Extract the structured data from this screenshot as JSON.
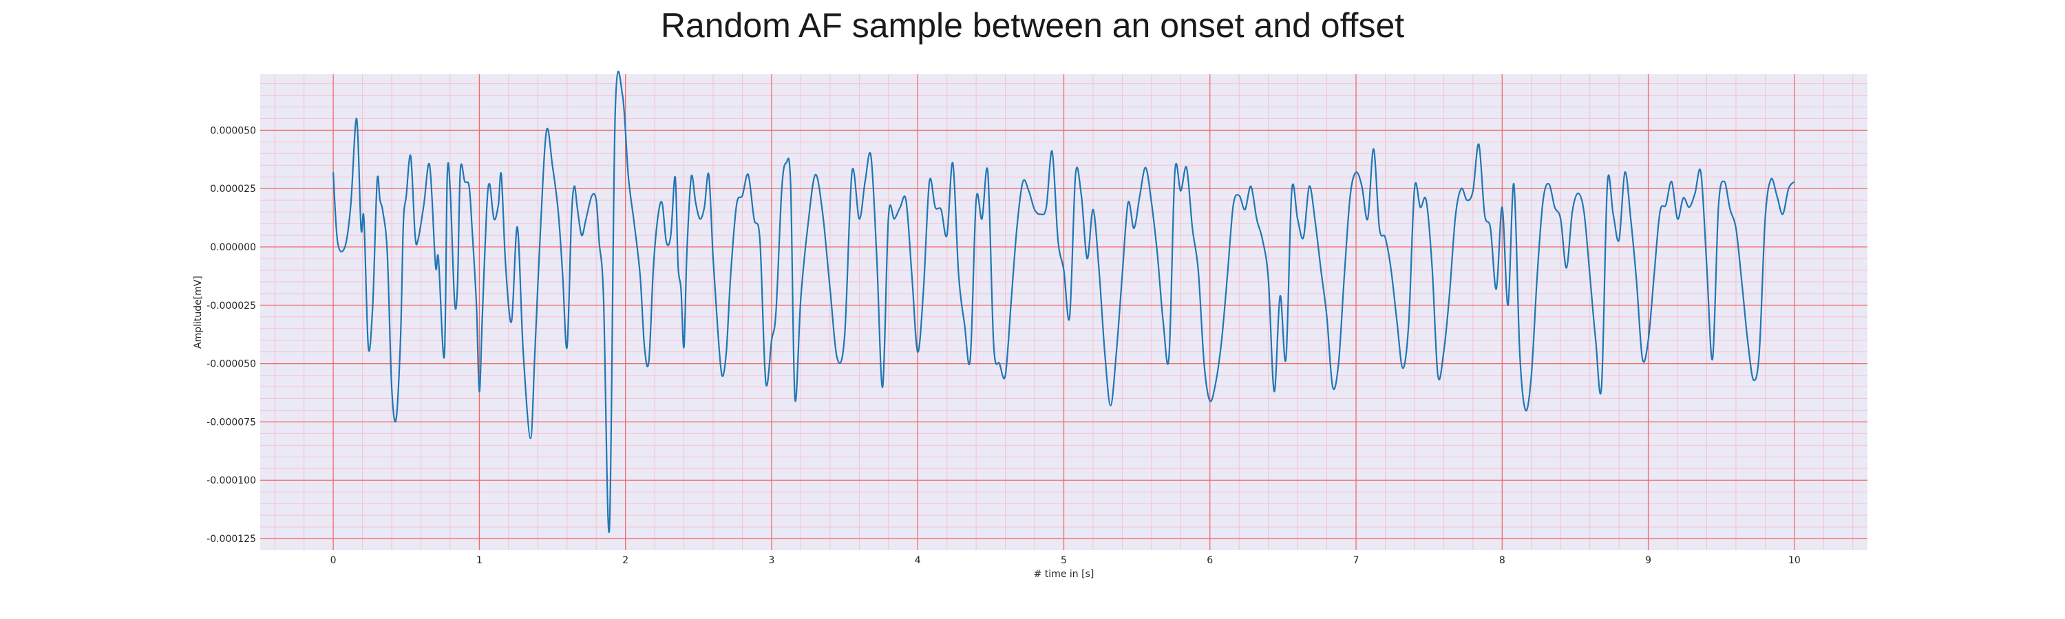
{
  "chart_data": {
    "type": "line",
    "title": "Random AF sample between an onset and offset",
    "xlabel": "# time in [s]",
    "ylabel": "Amplitude[mV]",
    "xlim": [
      -0.5,
      10.5
    ],
    "ylim": [
      -0.00013,
      7.4e-05
    ],
    "x_ticks": [
      0,
      1,
      2,
      3,
      4,
      5,
      6,
      7,
      8,
      9,
      10
    ],
    "x_tick_labels": [
      "0",
      "1",
      "2",
      "3",
      "4",
      "5",
      "6",
      "7",
      "8",
      "9",
      "10"
    ],
    "y_ticks": [
      5e-05,
      2.5e-05,
      0,
      -2.5e-05,
      -5e-05,
      -7.5e-05,
      -0.0001,
      -0.000125
    ],
    "y_tick_labels": [
      "0.000050",
      "0.000025",
      "0.000000",
      "-0.000025",
      "-0.000050",
      "-0.000075",
      "-0.000100",
      "-0.000125"
    ],
    "grid": true,
    "colors": {
      "line": "#1f77b4",
      "background": "#eae9f5",
      "major_grid": "#f26a6a",
      "minor_grid": "#f6c2cf"
    },
    "series": [
      {
        "x": [
          0.0,
          0.03,
          0.08,
          0.12,
          0.16,
          0.19,
          0.21,
          0.24,
          0.27,
          0.3,
          0.32,
          0.34,
          0.37,
          0.4,
          0.43,
          0.46,
          0.48,
          0.5,
          0.53,
          0.56,
          0.58,
          0.62,
          0.66,
          0.7,
          0.72,
          0.76,
          0.78,
          0.8,
          0.83,
          0.85,
          0.87,
          0.9,
          0.93,
          0.95,
          0.98,
          1.0,
          1.02,
          1.05,
          1.07,
          1.1,
          1.13,
          1.15,
          1.18,
          1.22,
          1.26,
          1.3,
          1.35,
          1.38,
          1.42,
          1.46,
          1.5,
          1.54,
          1.57,
          1.6,
          1.63,
          1.65,
          1.67,
          1.7,
          1.73,
          1.77,
          1.8,
          1.82,
          1.85,
          1.89,
          1.93,
          1.98,
          2.02,
          2.06,
          2.1,
          2.13,
          2.16,
          2.19,
          2.22,
          2.25,
          2.28,
          2.31,
          2.34,
          2.36,
          2.38,
          2.4,
          2.42,
          2.45,
          2.48,
          2.51,
          2.54,
          2.57,
          2.6,
          2.63,
          2.66,
          2.69,
          2.72,
          2.76,
          2.8,
          2.84,
          2.88,
          2.92,
          2.96,
          3.0,
          3.03,
          3.07,
          3.1,
          3.13,
          3.16,
          3.2,
          3.25,
          3.3,
          3.35,
          3.4,
          3.45,
          3.5,
          3.55,
          3.6,
          3.64,
          3.68,
          3.72,
          3.76,
          3.8,
          3.84,
          3.88,
          3.92,
          3.96,
          4.0,
          4.04,
          4.08,
          4.12,
          4.16,
          4.2,
          4.24,
          4.28,
          4.32,
          4.36,
          4.4,
          4.44,
          4.48,
          4.52,
          4.56,
          4.6,
          4.64,
          4.68,
          4.72,
          4.76,
          4.8,
          4.84,
          4.88,
          4.92,
          4.96,
          5.0,
          5.04,
          5.08,
          5.12,
          5.16,
          5.2,
          5.24,
          5.28,
          5.32,
          5.36,
          5.4,
          5.44,
          5.48,
          5.52,
          5.56,
          5.6,
          5.64,
          5.68,
          5.72,
          5.76,
          5.8,
          5.84,
          5.88,
          5.92,
          5.96,
          6.0,
          6.04,
          6.08,
          6.12,
          6.16,
          6.2,
          6.24,
          6.28,
          6.32,
          6.36,
          6.4,
          6.44,
          6.48,
          6.52,
          6.56,
          6.6,
          6.64,
          6.68,
          6.72,
          6.76,
          6.8,
          6.84,
          6.88,
          6.92,
          6.96,
          7.0,
          7.04,
          7.08,
          7.12,
          7.16,
          7.2,
          7.24,
          7.28,
          7.32,
          7.36,
          7.4,
          7.44,
          7.48,
          7.52,
          7.56,
          7.6,
          7.64,
          7.68,
          7.72,
          7.76,
          7.8,
          7.84,
          7.88,
          7.92,
          7.96,
          8.0,
          8.04,
          8.08,
          8.12,
          8.16,
          8.2,
          8.24,
          8.28,
          8.32,
          8.36,
          8.4,
          8.44,
          8.48,
          8.52,
          8.56,
          8.6,
          8.64,
          8.68,
          8.72,
          8.76,
          8.8,
          8.84,
          8.88,
          8.92,
          8.96,
          9.0,
          9.04,
          9.08,
          9.12,
          9.16,
          9.2,
          9.24,
          9.28,
          9.32,
          9.36,
          9.4,
          9.44,
          9.48,
          9.52,
          9.56,
          9.6,
          9.64,
          9.68,
          9.72,
          9.76,
          9.8,
          9.84,
          9.88,
          9.92,
          9.96,
          10.0
        ],
        "y": [
          3.2e-05,
          2e-06,
          0.0,
          1.8e-05,
          5.5e-05,
          8e-06,
          1.2e-05,
          -4.3e-05,
          -2.5e-05,
          2.8e-05,
          2e-05,
          1.5e-05,
          -3e-06,
          -6e-05,
          -7.4e-05,
          -4e-05,
          1e-05,
          2.2e-05,
          3.9e-05,
          5e-06,
          3e-06,
          1.8e-05,
          3.5e-05,
          -8e-06,
          -5e-06,
          -4.7e-05,
          3e-05,
          2.5e-05,
          -2.3e-05,
          -1.7e-05,
          3.3e-05,
          2.8e-05,
          2.6e-05,
          8e-06,
          -2.5e-05,
          -6.2e-05,
          -3e-05,
          1.6e-05,
          2.7e-05,
          1.2e-05,
          1.8e-05,
          3.1e-05,
          -8e-06,
          -3.2e-05,
          8.5e-06,
          -4.5e-05,
          -8.2e-05,
          -4.5e-05,
          1e-05,
          5e-05,
          3.5e-05,
          1.5e-05,
          -1.2e-05,
          -4.3e-05,
          1.2e-05,
          2.6e-05,
          1.7e-05,
          5e-06,
          1.2e-05,
          2.2e-05,
          2e-05,
          2e-06,
          -2.2e-05,
          -0.000121,
          5.8e-05,
          6.5e-05,
          3e-05,
          1e-05,
          -1.2e-05,
          -4.3e-05,
          -4.9e-05,
          -1e-05,
          1.2e-05,
          1.9e-05,
          2e-06,
          5e-06,
          3e-05,
          -8e-06,
          -1.8e-05,
          -4.3e-05,
          -3e-06,
          3e-05,
          1.9e-05,
          1.2e-05,
          1.7e-05,
          3.1e-05,
          -5e-06,
          -3.4e-05,
          -5.5e-05,
          -4.5e-05,
          -1.2e-05,
          1.8e-05,
          2.2e-05,
          3.1e-05,
          1.2e-05,
          3e-06,
          -5.8e-05,
          -4e-05,
          -2.8e-05,
          2.5e-05,
          3.6e-05,
          2.7e-05,
          -6.5e-05,
          -2.2e-05,
          1e-05,
          3.1e-05,
          1.4e-05,
          -1.8e-05,
          -4.8e-05,
          -3.8e-05,
          3.2e-05,
          1.2e-05,
          2.8e-05,
          3.9e-05,
          -5e-06,
          -6e-05,
          1.3e-05,
          1.2e-05,
          1.7e-05,
          2e-05,
          -1.2e-05,
          -4.5e-05,
          -1.8e-05,
          2.8e-05,
          1.7e-05,
          1.6e-05,
          5e-06,
          3.6e-05,
          -1.2e-05,
          -3.3e-05,
          -4.8e-05,
          2e-05,
          1.2e-05,
          3.2e-05,
          -4.2e-05,
          -5e-05,
          -5.5e-05,
          -2.3e-05,
          9e-06,
          2.8e-05,
          2.4e-05,
          1.6e-05,
          1.4e-05,
          1.7e-05,
          4.1e-05,
          3e-06,
          -1e-05,
          -3e-05,
          3.1e-05,
          2.2e-05,
          -5e-06,
          1.6e-05,
          -9e-06,
          -4.5e-05,
          -6.8e-05,
          -4.5e-05,
          -1.2e-05,
          1.9e-05,
          8e-06,
          2.2e-05,
          3.4e-05,
          1.9e-05,
          -3e-06,
          -3.2e-05,
          -4.7e-05,
          3.2e-05,
          2.4e-05,
          3.4e-05,
          8e-06,
          -1e-05,
          -5e-05,
          -6.6e-05,
          -5.8e-05,
          -4e-05,
          -1.2e-05,
          1.8e-05,
          2.2e-05,
          1.6e-05,
          2.6e-05,
          1.2e-05,
          3e-06,
          -1.4e-05,
          -6.2e-05,
          -2.1e-05,
          -4.8e-05,
          2.4e-05,
          1.2e-05,
          4e-06,
          2.6e-05,
          1.1e-05,
          -1e-05,
          -3e-05,
          -6e-05,
          -5e-05,
          -1.2e-05,
          2.2e-05,
          3.2e-05,
          2.6e-05,
          1.2e-05,
          4.2e-05,
          8e-06,
          4e-06,
          -1e-05,
          -3.2e-05,
          -5.2e-05,
          -3.3e-05,
          2.5e-05,
          1.7e-05,
          2e-05,
          -8e-06,
          -5.5e-05,
          -4.5e-05,
          -2e-05,
          1.3e-05,
          2.5e-05,
          2e-05,
          2.4e-05,
          4.4e-05,
          1.4e-05,
          8e-06,
          -1.8e-05,
          1.7e-05,
          -2.5e-05,
          2.7e-05,
          -4.5e-05,
          -7e-05,
          -5.5e-05,
          -1.2e-05,
          2e-05,
          2.7e-05,
          1.7e-05,
          1.2e-05,
          -9e-06,
          1.5e-05,
          2.3e-05,
          1.5e-05,
          -1.2e-05,
          -4e-05,
          -6e-05,
          2.7e-05,
          1.4e-05,
          3e-06,
          3.2e-05,
          1.2e-05,
          -1.5e-05,
          -4.8e-05,
          -4e-05,
          -1.2e-05,
          1.5e-05,
          1.8e-05,
          2.8e-05,
          1.2e-05,
          2.1e-05,
          1.7e-05,
          2.3e-05,
          3.2e-05,
          -8e-06,
          -4.8e-05,
          1.7e-05,
          2.8e-05,
          1.6e-05,
          8e-06,
          -1.5e-05,
          -4e-05,
          -5.7e-05,
          -4.5e-05,
          1.2e-05,
          2.9e-05,
          2.2e-05,
          1.4e-05,
          2.5e-05,
          2.8e-05
        ]
      }
    ]
  }
}
